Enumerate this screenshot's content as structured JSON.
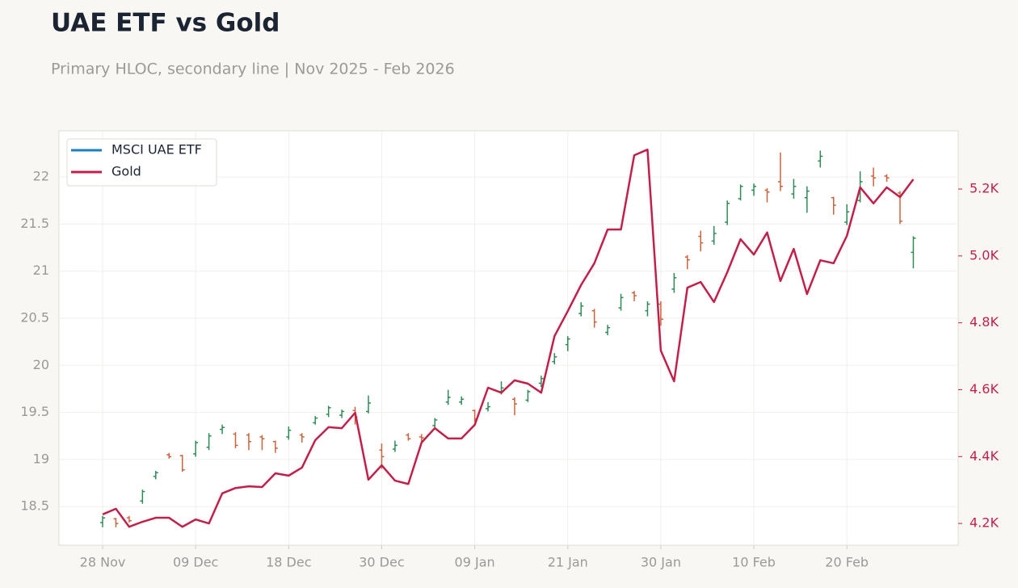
{
  "chart_data": {
    "type": "ohlc",
    "title": "UAE ETF vs Gold",
    "subtitle": "Primary HLOC, secondary line | Nov 2025 - Feb 2026",
    "categories": [
      "28 Nov",
      null,
      null,
      null,
      null,
      null,
      null,
      "09 Dec",
      null,
      null,
      null,
      null,
      null,
      null,
      "18 Dec",
      null,
      null,
      null,
      null,
      null,
      null,
      "30 Dec",
      null,
      null,
      null,
      null,
      null,
      null,
      "09 Jan",
      null,
      null,
      null,
      null,
      null,
      null,
      "21 Jan",
      null,
      null,
      null,
      null,
      null,
      null,
      "30 Jan",
      null,
      null,
      null,
      null,
      null,
      null,
      "10 Feb",
      null,
      null,
      null,
      null,
      null,
      null,
      "20 Feb",
      null,
      null,
      null,
      null,
      null
    ],
    "series": [
      {
        "name": "MSCI UAE ETF",
        "type": "ohlc",
        "color": "#1a7fc1",
        "up_color": "#2e8b57",
        "down_color": "#c8643c",
        "open": [
          18.33,
          18.37,
          18.38,
          18.56,
          18.82,
          19.05,
          19.04,
          19.06,
          19.13,
          19.32,
          19.27,
          19.26,
          19.24,
          19.19,
          19.24,
          19.26,
          19.39,
          19.48,
          19.47,
          19.52,
          19.51,
          19.1,
          19.11,
          19.26,
          19.24,
          19.36,
          19.61,
          19.61,
          19.52,
          19.54,
          19.72,
          19.64,
          19.63,
          19.81,
          20.04,
          20.22,
          20.55,
          20.58,
          20.35,
          20.61,
          20.77,
          20.58,
          20.65,
          20.81,
          21.15,
          21.37,
          21.32,
          21.52,
          21.77,
          21.86,
          21.86,
          21.95,
          21.82,
          21.78,
          22.17,
          21.78,
          21.52,
          21.75,
          22.01,
          22.01,
          21.83,
          21.2
        ],
        "high": [
          18.4,
          18.38,
          18.4,
          18.68,
          18.88,
          19.07,
          19.05,
          19.2,
          19.28,
          19.37,
          19.29,
          19.28,
          19.26,
          19.2,
          19.35,
          19.28,
          19.46,
          19.57,
          19.53,
          19.56,
          19.68,
          19.17,
          19.2,
          19.28,
          19.27,
          19.44,
          19.74,
          19.67,
          19.53,
          19.61,
          19.83,
          19.66,
          19.74,
          19.89,
          20.13,
          20.31,
          20.67,
          20.6,
          20.43,
          20.76,
          20.79,
          20.68,
          20.68,
          20.98,
          21.17,
          21.43,
          21.48,
          21.75,
          21.92,
          21.93,
          21.88,
          22.26,
          21.98,
          21.9,
          22.28,
          21.79,
          21.71,
          22.06,
          22.1,
          22.03,
          21.85,
          21.37
        ],
        "low": [
          18.28,
          18.28,
          18.33,
          18.53,
          18.79,
          19.01,
          18.87,
          19.03,
          19.1,
          19.27,
          19.12,
          19.1,
          19.1,
          19.07,
          19.21,
          19.18,
          19.37,
          19.45,
          19.44,
          19.37,
          19.49,
          18.9,
          19.08,
          19.2,
          19.19,
          19.34,
          19.58,
          19.58,
          19.4,
          19.51,
          19.69,
          19.47,
          19.61,
          19.77,
          20.01,
          20.15,
          20.52,
          20.4,
          20.32,
          20.58,
          20.68,
          20.52,
          20.42,
          20.77,
          21.02,
          21.21,
          21.28,
          21.49,
          21.75,
          21.8,
          21.73,
          21.85,
          21.77,
          21.62,
          22.1,
          21.6,
          21.49,
          21.73,
          21.9,
          21.95,
          21.5,
          21.03
        ],
        "close": [
          18.38,
          18.32,
          18.35,
          18.66,
          18.86,
          19.03,
          18.89,
          19.18,
          19.25,
          19.34,
          19.15,
          19.19,
          19.22,
          19.12,
          19.31,
          19.24,
          19.44,
          19.55,
          19.51,
          19.45,
          19.6,
          19.03,
          19.15,
          19.22,
          19.23,
          19.42,
          19.66,
          19.64,
          19.43,
          19.56,
          19.76,
          19.59,
          19.72,
          19.86,
          20.09,
          20.28,
          20.63,
          20.46,
          20.4,
          20.72,
          20.74,
          20.65,
          20.49,
          20.93,
          21.12,
          21.3,
          21.4,
          21.72,
          21.9,
          21.9,
          21.84,
          21.9,
          21.9,
          21.85,
          22.22,
          21.7,
          21.63,
          21.95,
          21.99,
          21.99,
          21.53,
          21.35
        ]
      },
      {
        "name": "Gold",
        "type": "line",
        "axis": "y2",
        "color": "#c0204a",
        "values": [
          4227,
          4244,
          4190,
          4205,
          4217,
          4217,
          4190,
          4212,
          4200,
          4290,
          4306,
          4311,
          4309,
          4350,
          4343,
          4367,
          4449,
          4488,
          4485,
          4531,
          4331,
          4374,
          4328,
          4318,
          4442,
          4485,
          4454,
          4454,
          4495,
          4606,
          4591,
          4628,
          4618,
          4591,
          4760,
          4835,
          4913,
          4978,
          5079,
          5079,
          5301,
          5318,
          4717,
          4625,
          4905,
          4922,
          4862,
          4951,
          5050,
          5004,
          5070,
          4925,
          5021,
          4886,
          4987,
          4978,
          5060,
          5205,
          5157,
          5205,
          5176,
          5229
        ]
      }
    ],
    "ylim": [
      18.09,
      22.49
    ],
    "yticks": [
      18.5,
      19,
      19.5,
      20,
      20.5,
      21,
      21.5,
      22
    ],
    "y2lim": [
      4135,
      5374
    ],
    "y2ticks": [
      {
        "value": 4200,
        "label": "4.2K"
      },
      {
        "value": 4400,
        "label": "4.4K"
      },
      {
        "value": 4600,
        "label": "4.6K"
      },
      {
        "value": 4800,
        "label": "4.8K"
      },
      {
        "value": 5000,
        "label": "5.0K"
      },
      {
        "value": 5200,
        "label": "5.2K"
      }
    ],
    "grid": true,
    "legend": "upper left"
  }
}
